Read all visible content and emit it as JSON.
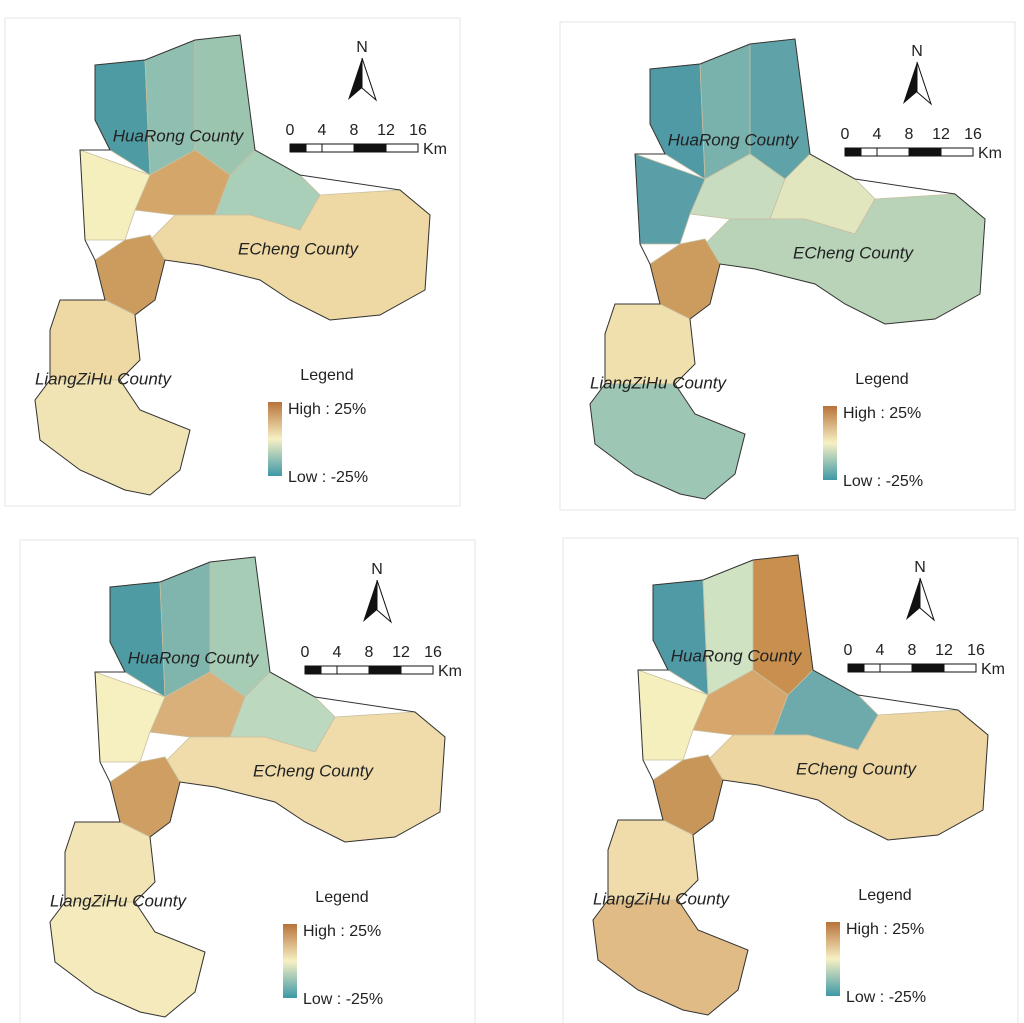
{
  "panels": [
    {
      "county_labels": [
        "HuaRong County",
        "ECheng County",
        "LiangZiHu County"
      ],
      "north": "N",
      "scale_ticks": [
        0,
        4,
        8,
        12,
        16
      ],
      "scale_unit": "Km",
      "legend": {
        "title": "Legend",
        "high": "High : 25%",
        "low": "Low : -25%"
      },
      "region_colors": [
        "#4e9ba3",
        "#8fbfb0",
        "#9cc5b0",
        "#d5a66a",
        "#f5efbe",
        "#a9cfb8",
        "#eed9a5",
        "#cc9b5e",
        "#eed9a5",
        "#f0e4b5"
      ]
    },
    {
      "county_labels": [
        "HuaRong County",
        "ECheng County",
        "LiangZiHu County"
      ],
      "north": "N",
      "scale_ticks": [
        0,
        4,
        8,
        12,
        16
      ],
      "scale_unit": "Km",
      "legend": {
        "title": "Legend",
        "high": "High : 25%",
        "low": "Low : -25%"
      },
      "region_colors": [
        "#4f9aa5",
        "#79b1ad",
        "#5fa3a9",
        "#c8dcbf",
        "#5a9ea8",
        "#e2e6bf",
        "#b9d3b9",
        "#cc9b5e",
        "#f0e0ad",
        "#9dc6b5"
      ]
    },
    {
      "county_labels": [
        "HuaRong County",
        "ECheng County",
        "LiangZiHu County"
      ],
      "north": "N",
      "scale_ticks": [
        0,
        4,
        8,
        12,
        16
      ],
      "scale_unit": "Km",
      "legend": {
        "title": "Legend",
        "high": "High : 25%",
        "low": "Low : -25%"
      },
      "region_colors": [
        "#4e9ba3",
        "#7fb5ad",
        "#a6ccb6",
        "#d9b07a",
        "#f6efbf",
        "#bcd9bf",
        "#efdcaa",
        "#cf9e62",
        "#f2e4b4",
        "#f4eabb"
      ]
    },
    {
      "county_labels": [
        "HuaRong County",
        "ECheng County",
        "LiangZiHu County"
      ],
      "north": "N",
      "scale_ticks": [
        0,
        4,
        8,
        12,
        16
      ],
      "scale_unit": "Km",
      "legend": {
        "title": "Legend",
        "high": "High : 25%",
        "low": "Low : -25%"
      },
      "region_colors": [
        "#4f9aa5",
        "#cfe2c2",
        "#c98f4e",
        "#d7a66d",
        "#f5efbe",
        "#6eaaab",
        "#edd6a2",
        "#c9965a",
        "#efdcaa",
        "#e0bb85"
      ]
    }
  ]
}
